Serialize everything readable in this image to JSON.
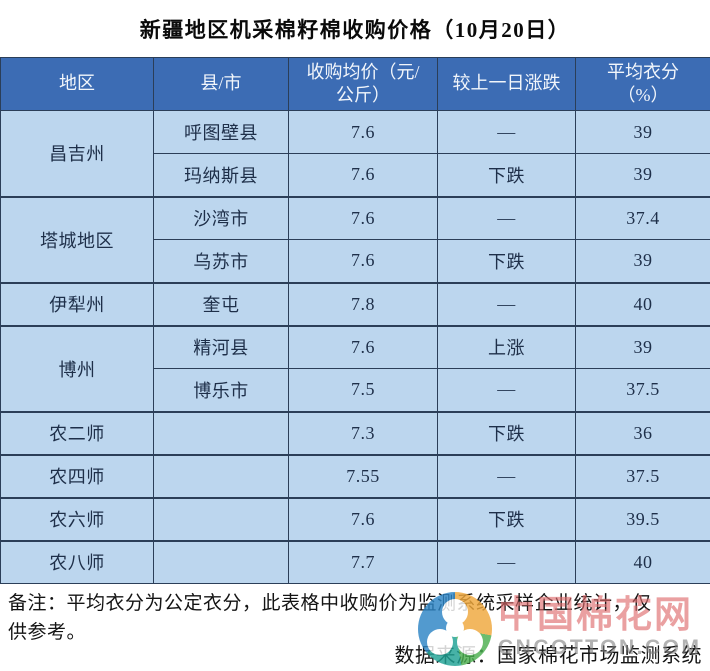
{
  "title": "新疆地区机采棉籽棉收购价格（10月20日）",
  "table": {
    "headers": [
      "地区",
      "县/市",
      "收购均价（元/\n公斤）",
      "较上一日涨跌",
      "平均衣分\n（%）"
    ],
    "groups": [
      {
        "region": "昌吉州",
        "rows": [
          [
            "呼图壁县",
            "7.6",
            "—",
            "39"
          ],
          [
            "玛纳斯县",
            "7.6",
            "下跌",
            "39"
          ]
        ]
      },
      {
        "region": "塔城地区",
        "rows": [
          [
            "沙湾市",
            "7.6",
            "—",
            "37.4"
          ],
          [
            "乌苏市",
            "7.6",
            "下跌",
            "39"
          ]
        ]
      },
      {
        "region": "伊犁州",
        "rows": [
          [
            "奎屯",
            "7.8",
            "—",
            "40"
          ]
        ]
      },
      {
        "region": "博州",
        "rows": [
          [
            "精河县",
            "7.6",
            "上涨",
            "39"
          ],
          [
            "博乐市",
            "7.5",
            "—",
            "37.5"
          ]
        ]
      },
      {
        "region": "农二师",
        "rows": [
          [
            "",
            "7.3",
            "下跌",
            "36"
          ]
        ]
      },
      {
        "region": "农四师",
        "rows": [
          [
            "",
            "7.55",
            "—",
            "37.5"
          ]
        ]
      },
      {
        "region": "农六师",
        "rows": [
          [
            "",
            "7.6",
            "下跌",
            "39.5"
          ]
        ]
      },
      {
        "region": "农八师",
        "rows": [
          [
            "",
            "7.7",
            "—",
            "40"
          ]
        ]
      }
    ]
  },
  "footer": {
    "note": "备注：平均衣分为公定衣分，此表格中收购价为监测系统采样企业统计，仅\n供参考。",
    "source": "数据来源：国家棉花市场监测系统"
  },
  "watermark": {
    "cn": "中国棉花网",
    "en": "CNCOTTON.COM",
    "icon": "cotton-trefoil-logo"
  },
  "colors": {
    "header_bg": "#3c6cb4",
    "header_text": "#f2f6fb",
    "cell_bg": "#bcd6ee",
    "cell_text": "#1e2f49",
    "border": "#2b3e58",
    "watermark_cn": "#de6a6c",
    "watermark_en": "#7d7d7d",
    "logo_blue": "#2d85c5",
    "logo_green": "#4caf50",
    "logo_teal": "#1fa294",
    "logo_orange": "#f0a83c"
  }
}
